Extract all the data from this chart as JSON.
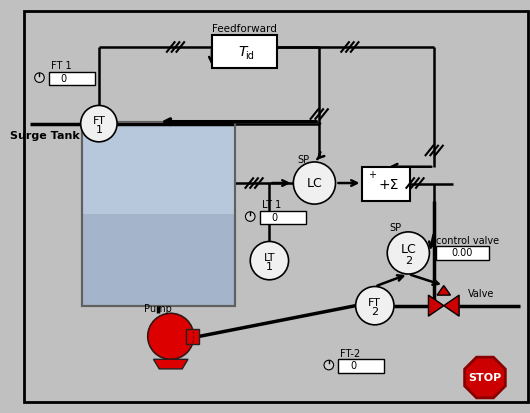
{
  "bg_color": "#c0c0c0",
  "border_color": "#000000",
  "feedforward_label": "Feedforward",
  "tid_label": "T",
  "tid_sub": "id",
  "lc1_label": "LC",
  "ft1_label": "FT\n1",
  "ft2_label": "FT\n2",
  "lt1_label": "LT\n1",
  "surge_tank_label": "Surge Tank",
  "pump_label": "Pump",
  "valve_label": "Valve",
  "control_valve_label": "control valve",
  "ft1_display": "0",
  "lt1_display": "0",
  "ft2_display": "0",
  "control_valve_display": "0.00",
  "sp1_label": "SP",
  "sp2_label": "SP",
  "ft1_knob_label": "FT 1",
  "lt1_knob_label": "LT 1",
  "ft2_knob_label": "FT-2",
  "sum_plus": "+",
  "sum_sigma": "+Σ",
  "stop_color": "#cc0000",
  "tank_fill_top": "#b8c8dc",
  "tank_fill_bot": "#8898b0",
  "tank_border": "#606060",
  "pump_color": "#dd0000",
  "valve_color": "#cc0000",
  "pipe_color": "#000000",
  "box_bg": "#ffffff",
  "circle_bg": "#f0f0f0",
  "knob_color": "#d0d0d0"
}
